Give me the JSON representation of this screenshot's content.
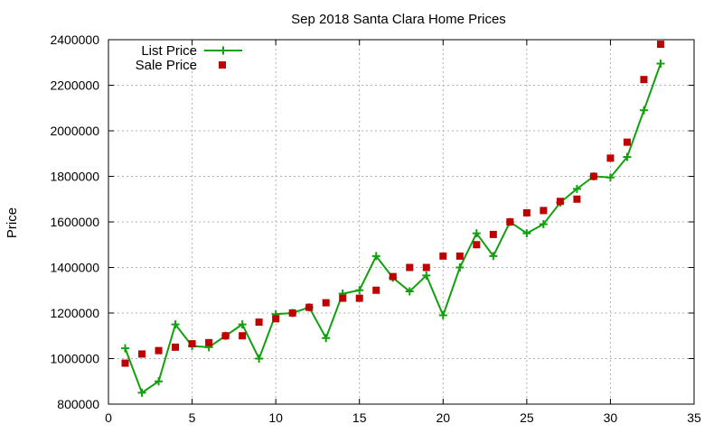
{
  "chart_data": {
    "type": "line",
    "title": "Sep 2018 Santa Clara Home Prices",
    "xlabel": "",
    "ylabel": "Price",
    "xlim": [
      0,
      35
    ],
    "ylim": [
      800000,
      2400000
    ],
    "xticks": [
      0,
      5,
      10,
      15,
      20,
      25,
      30,
      35
    ],
    "yticks": [
      800000,
      1000000,
      1200000,
      1400000,
      1600000,
      1800000,
      2000000,
      2200000,
      2400000
    ],
    "grid": true,
    "legend_position": "top-left",
    "series": [
      {
        "name": "List Price",
        "style": "line+cross",
        "color": "#11a00e",
        "x": [
          1,
          2,
          3,
          4,
          5,
          6,
          7,
          8,
          9,
          10,
          11,
          12,
          13,
          14,
          15,
          16,
          17,
          18,
          19,
          20,
          21,
          22,
          23,
          24,
          25,
          26,
          27,
          28,
          29,
          30,
          31,
          32,
          33
        ],
        "y": [
          1045000,
          850000,
          900000,
          1150000,
          1055000,
          1050000,
          1100000,
          1150000,
          1000000,
          1195000,
          1200000,
          1225000,
          1090000,
          1285000,
          1300000,
          1450000,
          1355000,
          1295000,
          1365000,
          1190000,
          1400000,
          1550000,
          1450000,
          1600000,
          1550000,
          1590000,
          1685000,
          1745000,
          1800000,
          1795000,
          1885000,
          2090000,
          2295000
        ]
      },
      {
        "name": "Sale Price",
        "style": "square",
        "color": "#c00000",
        "x": [
          1,
          2,
          3,
          4,
          5,
          6,
          7,
          8,
          9,
          10,
          11,
          12,
          13,
          14,
          15,
          16,
          17,
          18,
          19,
          20,
          21,
          22,
          23,
          24,
          25,
          26,
          27,
          28,
          29,
          30,
          31,
          32,
          33
        ],
        "y": [
          980000,
          1020000,
          1035000,
          1050000,
          1065000,
          1070000,
          1100000,
          1100000,
          1160000,
          1175000,
          1200000,
          1225000,
          1245000,
          1265000,
          1265000,
          1300000,
          1360000,
          1400000,
          1400000,
          1450000,
          1450000,
          1500000,
          1545000,
          1600000,
          1640000,
          1650000,
          1690000,
          1700000,
          1800000,
          1880000,
          1950000,
          2225000,
          2380000
        ]
      }
    ]
  }
}
